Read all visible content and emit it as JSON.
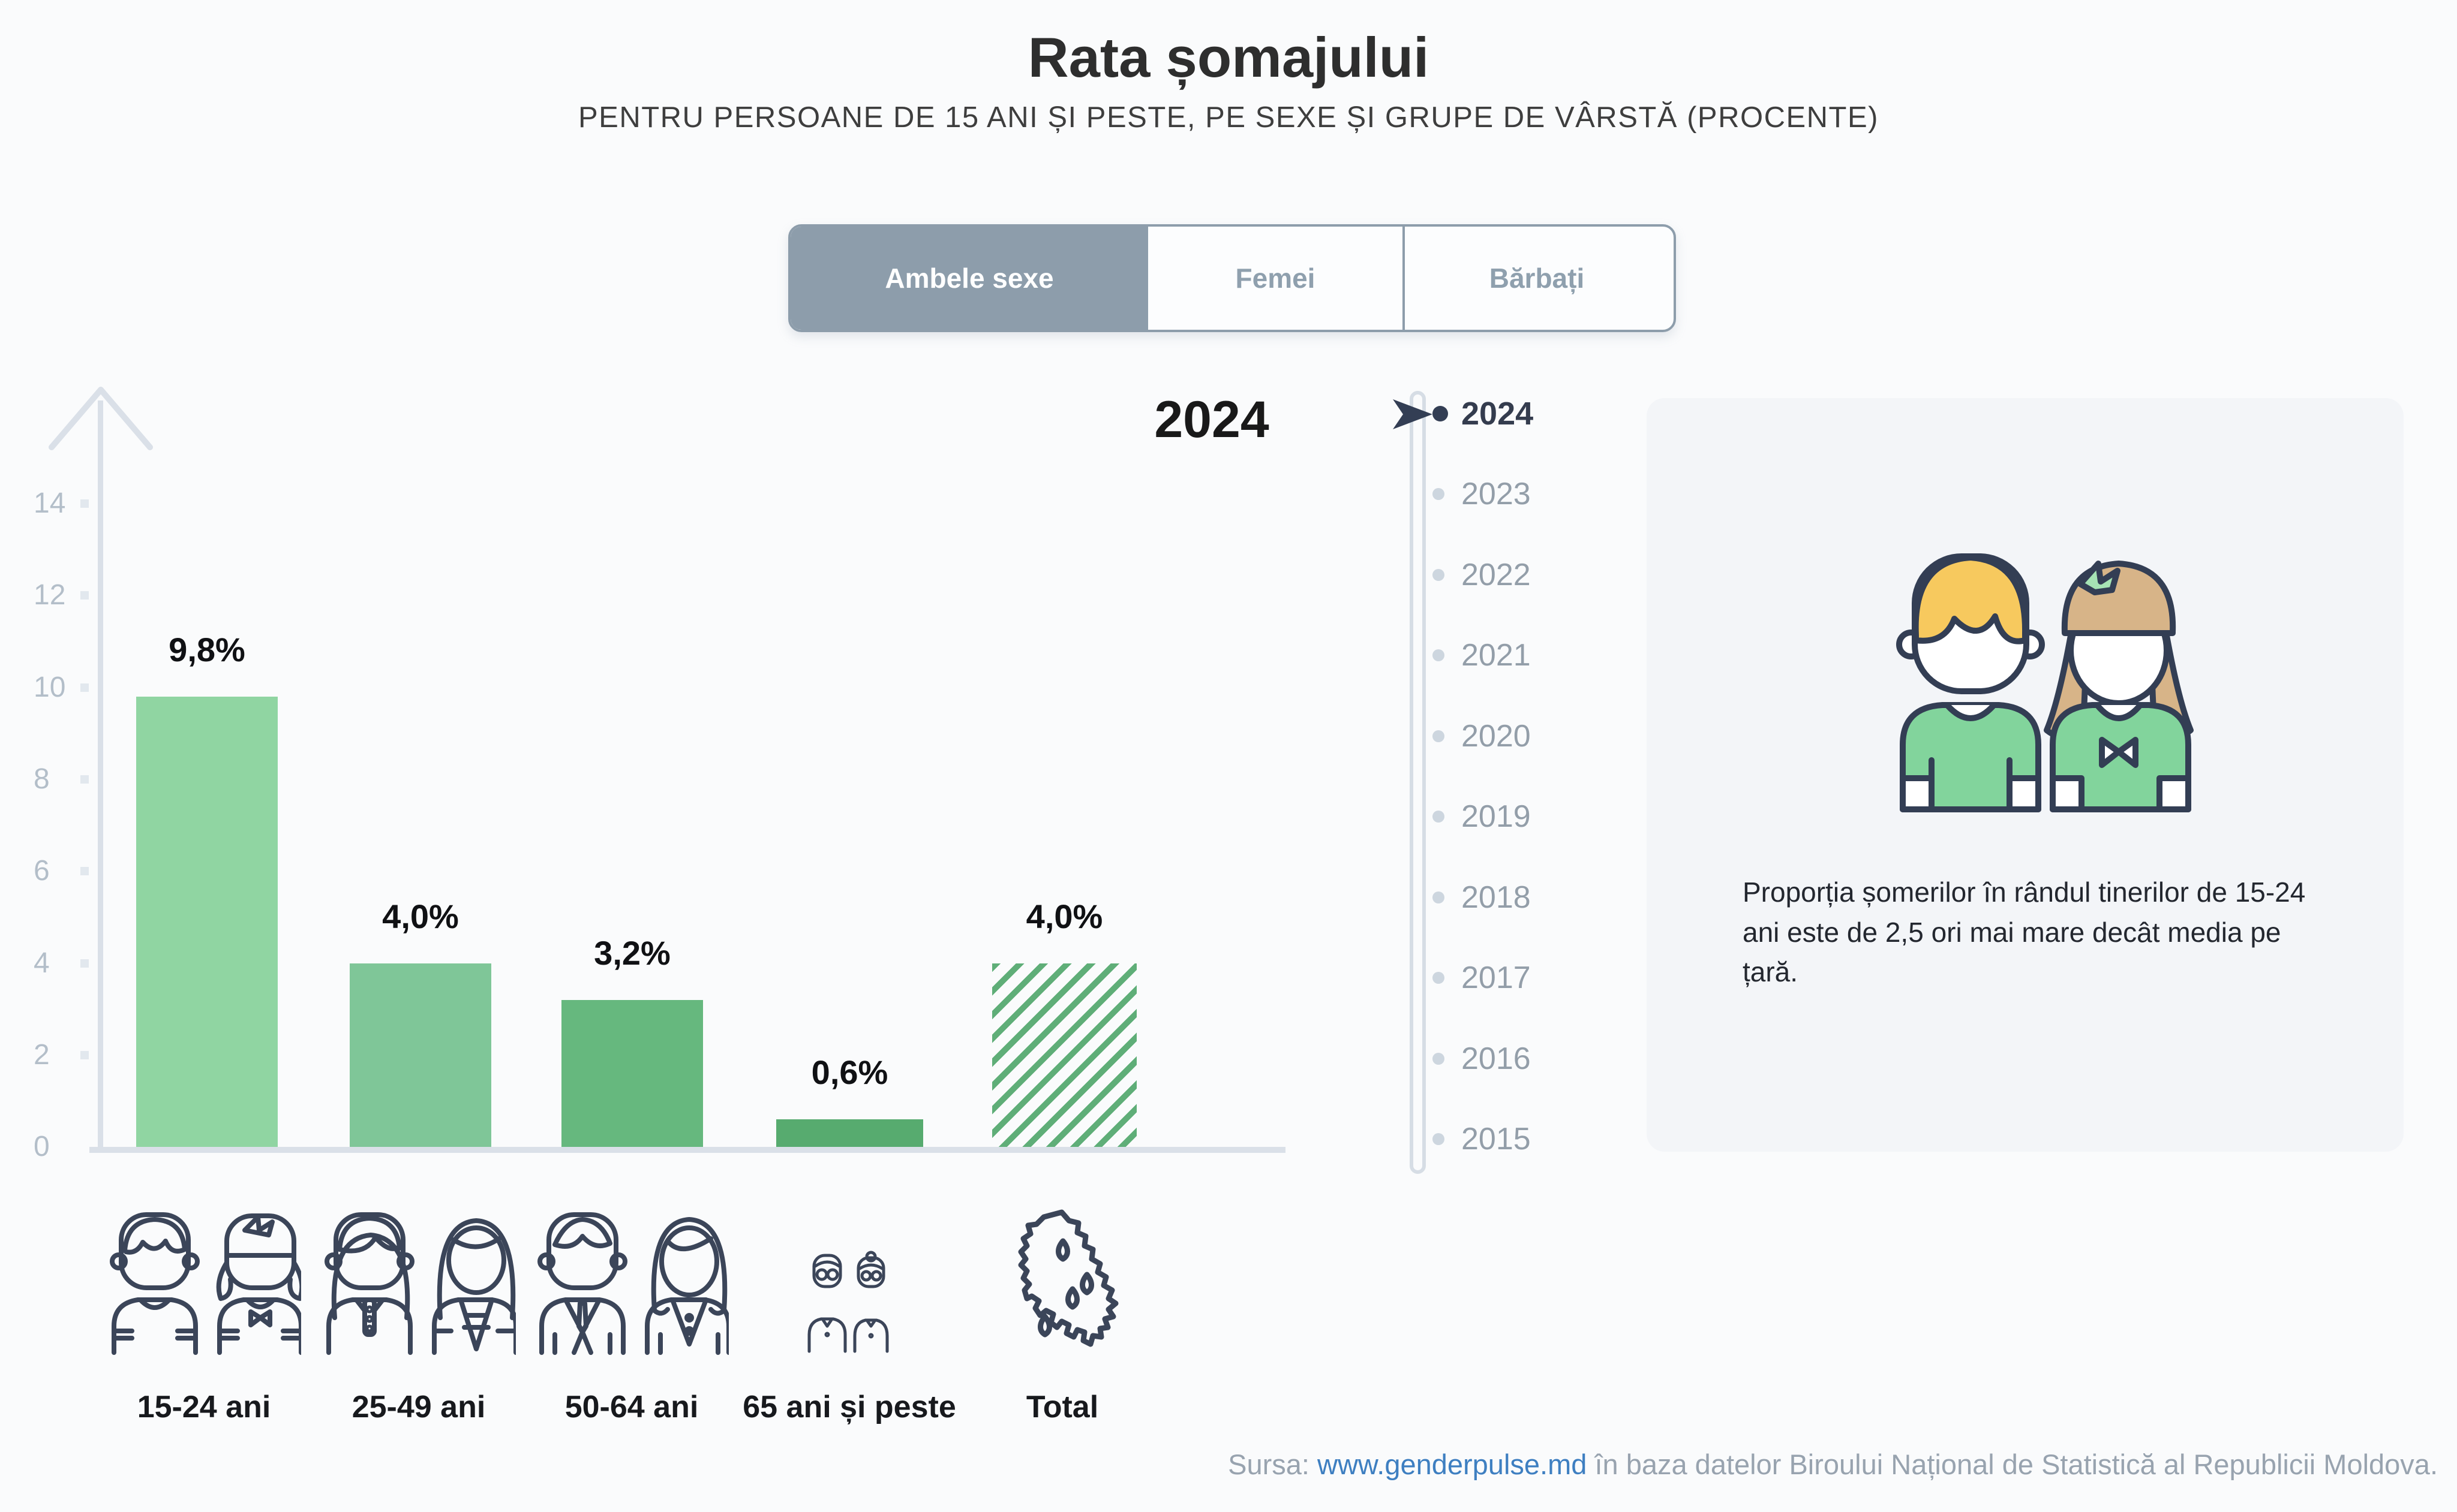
{
  "page": {
    "title": "Rata șomajului",
    "subtitle": "PENTRU PERSOANE DE 15 ANI ȘI PESTE, PE SEXE ȘI GRUPE DE VÂRSTĂ (PROCENTE)"
  },
  "tabs": [
    {
      "label": "Ambele sexe",
      "selected": true
    },
    {
      "label": "Femei",
      "selected": false
    },
    {
      "label": "Bărbați",
      "selected": false
    }
  ],
  "chart_data": {
    "type": "bar",
    "title": "Rata șomajului",
    "subtitle": "Pentru persoane de 15 ani și peste, pe sexe și grupe de vârstă (procente)",
    "year_shown": "2024",
    "categories": [
      "15-24 ani",
      "25-49 ani",
      "50-64 ani",
      "65 ani și peste",
      "Total"
    ],
    "values": [
      9.8,
      4.0,
      3.2,
      0.6,
      4.0
    ],
    "value_labels": [
      "9,8%",
      "4,0%",
      "3,2%",
      "0,6%",
      "4,0%"
    ],
    "unit": "%",
    "ylim": [
      0,
      15
    ],
    "yticks": [
      0,
      2,
      4,
      6,
      8,
      10,
      12,
      14
    ],
    "grid": false,
    "legend": "none",
    "bar_colors": [
      "#90d5a2",
      "#7fc698",
      "#66b87e",
      "#57ab6f",
      "#5fae78"
    ],
    "total_bar_style": "diagonal-hatch"
  },
  "timeline": {
    "selected": "2024",
    "years": [
      {
        "label": "2024"
      },
      {
        "label": "2023"
      },
      {
        "label": "2022"
      },
      {
        "label": "2021"
      },
      {
        "label": "2020"
      },
      {
        "label": "2019"
      },
      {
        "label": "2018"
      },
      {
        "label": "2017"
      },
      {
        "label": "2016"
      },
      {
        "label": "2015"
      }
    ]
  },
  "infobox": {
    "text": "Proporția șomerilor în rândul tinerilor de 15-24 ani este de 2,5 ori mai mare decât media pe țară."
  },
  "footer": {
    "prefix": "Sursa: ",
    "link": "www.genderpulse.md",
    "suffix": " în baza datelor Biroului Național de Statistică al Republicii Moldova."
  },
  "colors": {
    "background": "#fafbfc",
    "accent_slate": "#8d9dab",
    "axis_line": "#dae0e8",
    "axis_label": "#b3bec9",
    "timeline_dark": "#333e54",
    "timeline_light": "#cdd6df",
    "link_blue": "#3e7fc1",
    "infobox_bg": "#f3f5f8",
    "illustration_outline": "#333e54",
    "illustration_shirt_green": "#82d49c",
    "illustration_hair_blond": "#f7c95e",
    "illustration_hair_brown": "#d7b488",
    "illustration_bow_green": "#a6e3b4"
  }
}
